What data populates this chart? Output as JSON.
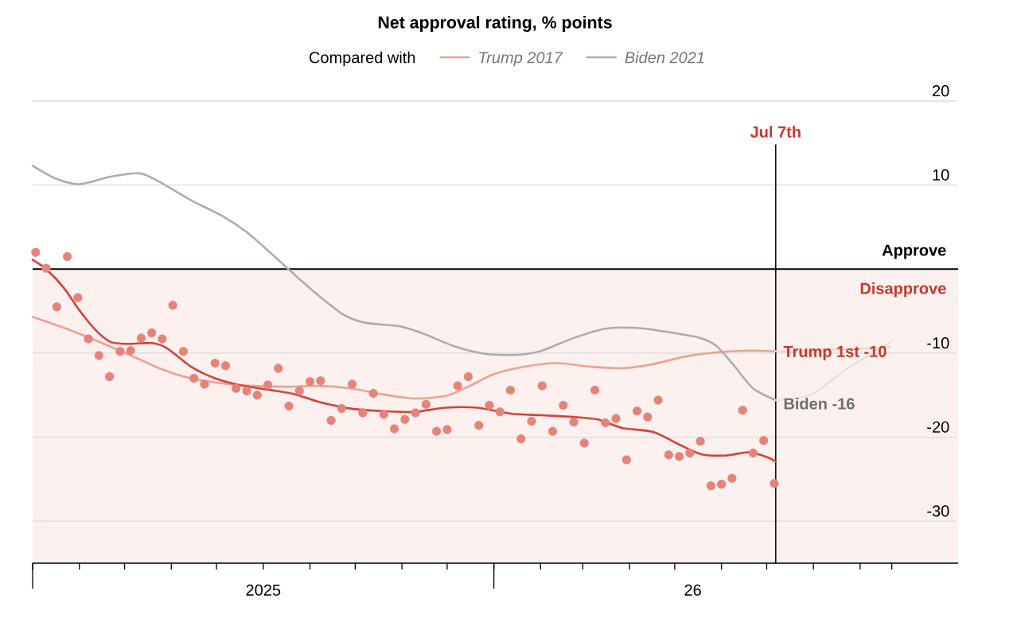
{
  "chart_data": {
    "type": "line",
    "title": "Net approval rating, % points",
    "legend_title": "Compared with",
    "legend": "top",
    "grid": "y",
    "xlim": [
      "2025-03-01",
      "2026-11-05"
    ],
    "ylim": [
      -35,
      20
    ],
    "yticks": [
      20,
      10,
      -10,
      -20,
      -30
    ],
    "xticks": [
      {
        "value": "2025-03-01",
        "label": null
      },
      {
        "value": "2025-04-01",
        "label": null
      },
      {
        "value": "2025-05-01",
        "label": null
      },
      {
        "value": "2025-06-01",
        "label": null
      },
      {
        "value": "2025-07-01",
        "label": null
      },
      {
        "value": "2025-08-01",
        "label": null
      },
      {
        "value": "2025-09-01",
        "label": null
      },
      {
        "value": "2025-10-01",
        "label": null
      },
      {
        "value": "2025-11-01",
        "label": null
      },
      {
        "value": "2025-12-01",
        "label": null
      },
      {
        "value": "2026-01-01",
        "label": null
      },
      {
        "value": "2026-02-01",
        "label": null
      },
      {
        "value": "2026-03-01",
        "label": null
      },
      {
        "value": "2026-04-01",
        "label": null
      },
      {
        "value": "2026-05-01",
        "label": null
      },
      {
        "value": "2026-06-01",
        "label": null
      },
      {
        "value": "2026-07-01",
        "label": null
      },
      {
        "value": "2026-08-01",
        "label": null
      },
      {
        "value": "2026-09-01",
        "label": null
      },
      {
        "value": "2026-09-22",
        "label": null
      },
      {
        "value": "2025-08-01",
        "label": "2025"
      },
      {
        "value": "2026-05-13",
        "label": "26"
      }
    ],
    "bands": [
      {
        "axis": "y",
        "from": -35,
        "to": 0,
        "label": "Disapprove",
        "color": "#fcf1ef"
      }
    ],
    "ref_lines": [
      {
        "axis": "y",
        "value": 0,
        "label": "Approve",
        "color": "#000000"
      },
      {
        "axis": "x",
        "value": "2026-07-07",
        "label": "Jul 7th",
        "color": "#000000"
      }
    ],
    "annotations": [
      {
        "text": "Trump 1st -10",
        "x": "2026-07-07",
        "y": -10
      },
      {
        "text": "Biden -16",
        "x": "2026-07-07",
        "y": -16
      }
    ],
    "series": [
      {
        "name": "Trump 2017",
        "color": "#eba295",
        "x": [
          "2025-03-01",
          "2025-03-22",
          "2025-04-12",
          "2025-05-03",
          "2025-05-24",
          "2025-06-14",
          "2025-07-05",
          "2025-07-26",
          "2025-08-17",
          "2025-09-07",
          "2025-09-28",
          "2025-10-19",
          "2025-11-09",
          "2025-11-30",
          "2025-12-16",
          "2026-01-01",
          "2026-01-22",
          "2026-02-12",
          "2026-03-05",
          "2026-03-27",
          "2026-04-17",
          "2026-05-08",
          "2026-05-29",
          "2026-06-19",
          "2026-07-07"
        ],
        "values": [
          -5.7,
          -7.0,
          -8.5,
          -10.1,
          -11.8,
          -13.0,
          -13.6,
          -13.9,
          -14.0,
          -13.9,
          -14.2,
          -14.9,
          -15.4,
          -15.1,
          -13.9,
          -12.5,
          -11.6,
          -11.2,
          -11.6,
          -11.8,
          -11.3,
          -10.4,
          -9.9,
          -9.7,
          -9.8
        ]
      },
      {
        "name": "Biden 2021",
        "color": "#adadad",
        "x": [
          "2025-03-01",
          "2025-03-16",
          "2025-04-01",
          "2025-04-22",
          "2025-05-11",
          "2025-05-24",
          "2025-06-14",
          "2025-07-05",
          "2025-07-21",
          "2025-08-06",
          "2025-08-22",
          "2025-09-07",
          "2025-09-23",
          "2025-10-08",
          "2025-10-30",
          "2025-11-14",
          "2025-12-06",
          "2025-12-27",
          "2026-01-17",
          "2026-02-02",
          "2026-02-23",
          "2026-03-16",
          "2026-04-06",
          "2026-04-27",
          "2026-05-18",
          "2026-05-29",
          "2026-06-09",
          "2026-06-22",
          "2026-07-07"
        ],
        "values": [
          12.3,
          10.8,
          10.1,
          11.0,
          11.4,
          10.4,
          8.2,
          6.3,
          4.4,
          1.9,
          -0.7,
          -3.2,
          -5.4,
          -6.4,
          -6.8,
          -7.6,
          -9.2,
          -10.1,
          -10.2,
          -9.7,
          -8.2,
          -7.1,
          -7.0,
          -7.5,
          -8.2,
          -9.2,
          -11.4,
          -14.2,
          -15.6
        ]
      },
      {
        "color": "#f5d3cc",
        "x": [
          "2026-07-07",
          "2026-07-31",
          "2026-08-22",
          "2026-09-12",
          "2026-09-21"
        ],
        "values": [
          -9.8,
          -9.7,
          -9.5,
          -9.4,
          -9.2
        ]
      },
      {
        "color": "#e2e2e2",
        "x": [
          "2026-07-07",
          "2026-07-31",
          "2026-08-22",
          "2026-09-12",
          "2026-09-22"
        ],
        "values": [
          -15.6,
          -14.9,
          -12.0,
          -9.7,
          -8.6
        ]
      },
      {
        "type": "scatter",
        "marker": "circle",
        "color": "#e5837b",
        "x": [
          "2025-03-03",
          "2025-03-10",
          "2025-03-17",
          "2025-03-24",
          "2025-03-31",
          "2025-04-07",
          "2025-04-14",
          "2025-04-21",
          "2025-04-28",
          "2025-05-05",
          "2025-05-12",
          "2025-05-19",
          "2025-05-26",
          "2025-06-02",
          "2025-06-09",
          "2025-06-16",
          "2025-06-23",
          "2025-06-30",
          "2025-07-07",
          "2025-07-14",
          "2025-07-21",
          "2025-07-28",
          "2025-08-04",
          "2025-08-11",
          "2025-08-18",
          "2025-08-25",
          "2025-09-01",
          "2025-09-08",
          "2025-09-15",
          "2025-09-22",
          "2025-09-29",
          "2025-10-06",
          "2025-10-13",
          "2025-10-20",
          "2025-10-27",
          "2025-11-03",
          "2025-11-10",
          "2025-11-17",
          "2025-11-24",
          "2025-12-01",
          "2025-12-08",
          "2025-12-15",
          "2025-12-22",
          "2025-12-29",
          "2026-01-05",
          "2026-01-12",
          "2026-01-19",
          "2026-01-26",
          "2026-02-02",
          "2026-02-09",
          "2026-02-16",
          "2026-02-23",
          "2026-03-02",
          "2026-03-09",
          "2026-03-16",
          "2026-03-23",
          "2026-03-30",
          "2026-04-06",
          "2026-04-13",
          "2026-04-20",
          "2026-04-27",
          "2026-05-04",
          "2026-05-11",
          "2026-05-18",
          "2026-05-25",
          "2026-06-01",
          "2026-06-08",
          "2026-06-15",
          "2026-06-22",
          "2026-06-29",
          "2026-07-06"
        ],
        "values": [
          2.0,
          0.1,
          -4.5,
          1.5,
          -3.4,
          -8.3,
          -10.3,
          -12.8,
          -9.8,
          -9.7,
          -8.2,
          -7.6,
          -8.3,
          -4.3,
          -9.8,
          -13.0,
          -13.7,
          -11.2,
          -11.5,
          -14.2,
          -14.5,
          -15.0,
          -13.8,
          -11.8,
          -16.3,
          -14.5,
          -13.4,
          -13.3,
          -18.0,
          -16.6,
          -13.7,
          -17.1,
          -14.8,
          -17.3,
          -19.0,
          -17.9,
          -17.1,
          -16.1,
          -19.3,
          -19.1,
          -13.9,
          -12.8,
          -18.6,
          -16.2,
          -17.0,
          -14.4,
          -20.2,
          -18.1,
          -13.9,
          -19.3,
          -16.2,
          -18.2,
          -20.7,
          -14.4,
          -18.3,
          -17.8,
          -22.7,
          -16.9,
          -17.6,
          -15.6,
          -22.1,
          -22.3,
          -21.9,
          -20.5,
          -25.8,
          -25.6,
          -24.9,
          -16.8,
          -21.9,
          -20.4,
          -25.5
        ]
      },
      {
        "color": "#d9403a",
        "x": [
          "2025-03-01",
          "2025-03-10",
          "2025-03-22",
          "2025-04-01",
          "2025-04-12",
          "2025-04-22",
          "2025-05-03",
          "2025-05-19",
          "2025-05-29",
          "2025-06-14",
          "2025-06-30",
          "2025-07-16",
          "2025-08-06",
          "2025-08-22",
          "2025-09-07",
          "2025-09-28",
          "2025-10-19",
          "2025-11-09",
          "2025-11-30",
          "2025-12-21",
          "2026-01-12",
          "2026-02-02",
          "2026-02-23",
          "2026-03-11",
          "2026-03-27",
          "2026-04-17",
          "2026-05-03",
          "2026-05-18",
          "2026-06-03",
          "2026-06-19",
          "2026-06-30",
          "2026-07-07"
        ],
        "values": [
          1.1,
          0,
          -2.3,
          -4.9,
          -7.3,
          -8.7,
          -8.9,
          -8.8,
          -9.4,
          -11.6,
          -13.0,
          -13.8,
          -14.4,
          -14.9,
          -15.8,
          -16.6,
          -16.9,
          -17.0,
          -16.5,
          -16.5,
          -17.2,
          -17.4,
          -17.6,
          -17.9,
          -18.9,
          -19.4,
          -20.8,
          -22.0,
          -22.2,
          -21.8,
          -22.3,
          -22.9
        ]
      }
    ]
  }
}
